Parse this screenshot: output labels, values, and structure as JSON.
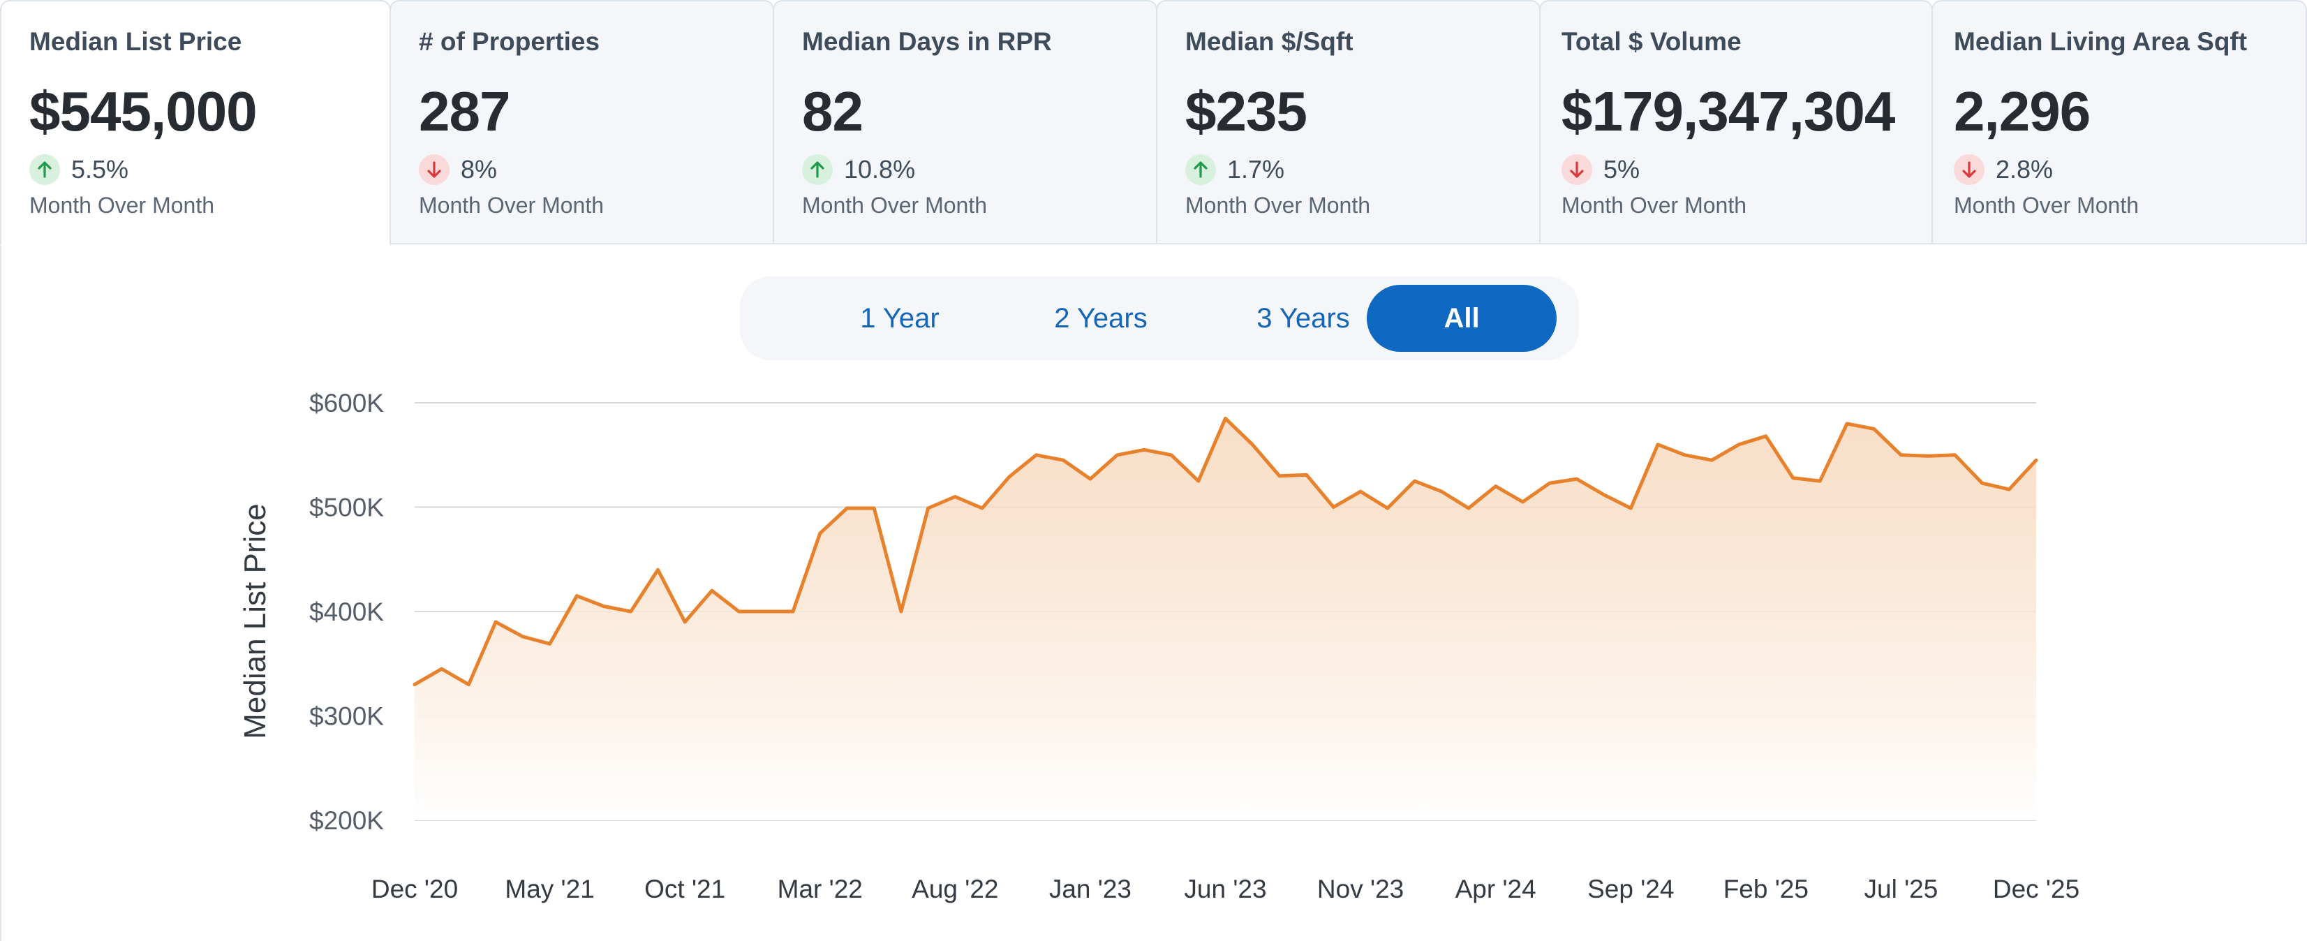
{
  "metric_tabs": [
    {
      "title": "Median List Price",
      "value": "$545,000",
      "direction": "up",
      "change": "5.5%",
      "period": "Month Over Month",
      "active": true
    },
    {
      "title": "# of Properties",
      "value": "287",
      "direction": "down",
      "change": "8%",
      "period": "Month Over Month",
      "active": false
    },
    {
      "title": "Median Days in RPR",
      "value": "82",
      "direction": "up",
      "change": "10.8%",
      "period": "Month Over Month",
      "active": false
    },
    {
      "title": "Median $/Sqft",
      "value": "$235",
      "direction": "up",
      "change": "1.7%",
      "period": "Month Over Month",
      "active": false
    },
    {
      "title": "Total $ Volume",
      "value": "$179,347,304",
      "direction": "down",
      "change": "5%",
      "period": "Month Over Month",
      "active": false
    },
    {
      "title": "Median Living Area Sqft",
      "value": "2,296",
      "direction": "down",
      "change": "2.8%",
      "period": "Month Over Month",
      "active": false
    }
  ],
  "range_selector": {
    "options": [
      "1 Year",
      "2 Years",
      "3 Years",
      "All"
    ],
    "selected": "All"
  },
  "colors": {
    "line": "#e8812c",
    "area_top": "#f6d3b4",
    "up_arrow": "#1f9a4a",
    "down_arrow": "#d83a3a",
    "accent": "#0f68c2"
  },
  "icons": {
    "up": "arrow-up-icon",
    "down": "arrow-down-icon"
  },
  "chart_data": {
    "type": "area",
    "ylabel": "Median List Price",
    "ylim": [
      200000,
      600000
    ],
    "y_ticks": [
      600000,
      500000,
      400000,
      300000,
      200000
    ],
    "y_tick_labels": [
      "$600K",
      "$500K",
      "$400K",
      "$300K",
      "$200K"
    ],
    "x_tick_labels": [
      "Dec '20",
      "May '21",
      "Oct '21",
      "Mar '22",
      "Aug '22",
      "Jan '23",
      "Jun '23",
      "Nov '23",
      "Apr '24",
      "Sep '24",
      "Feb '25",
      "Jul '25",
      "Dec '25"
    ],
    "x_start": "Dec '20",
    "x_end": "Dec '25",
    "grid": true,
    "series": [
      {
        "values": [
          330000,
          345000,
          330000,
          390000,
          376000,
          369000,
          415000,
          405000,
          400000,
          440000,
          390000,
          420000,
          400000,
          400000,
          400000,
          475000,
          499000,
          499000,
          400000,
          499000,
          510000,
          499000,
          529000,
          550000,
          545000,
          527000,
          550000,
          555000,
          550000,
          525000,
          585000,
          560000,
          530000,
          531000,
          500000,
          515000,
          499000,
          525000,
          515000,
          499000,
          520000,
          505000,
          523000,
          527000,
          512000,
          499000,
          560000,
          550000,
          545000,
          560000,
          568000,
          528000,
          525000,
          580000,
          575000,
          550000,
          549000,
          550000,
          523000,
          517000,
          545000
        ]
      }
    ]
  }
}
